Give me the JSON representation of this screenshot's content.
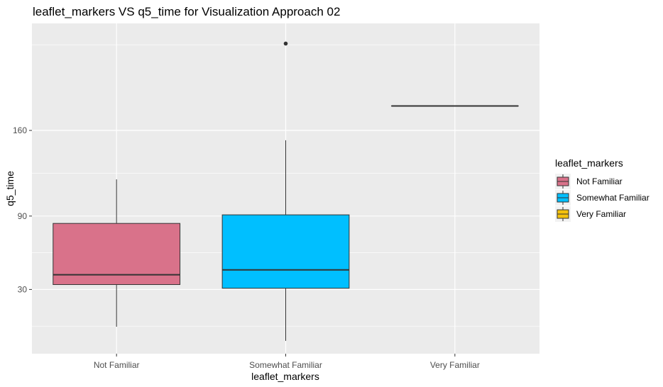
{
  "chart_data": {
    "type": "box",
    "title": "leaflet_markers VS q5_time for Visualization Approach 02",
    "xlabel": "leaflet_markers",
    "ylabel": "q5_time",
    "categories": [
      "Not Familiar",
      "Somewhat Familiar",
      "Very Familiar"
    ],
    "ylim": [
      -22.5,
      247.5
    ],
    "yticks": [
      30,
      90,
      160
    ],
    "ytick_labels": [
      "30",
      "90",
      "160"
    ],
    "boxes": [
      {
        "category": "Not Familiar",
        "min": -0.5,
        "q1": 34,
        "median": 42,
        "q3": 84,
        "max": 120,
        "outliers": [],
        "fill": "#d9728a"
      },
      {
        "category": "Somewhat Familiar",
        "min": -12,
        "q1": 31,
        "median": 46,
        "q3": 91,
        "max": 152,
        "outliers": [
          231
        ],
        "fill": "#00bfff"
      },
      {
        "category": "Very Familiar",
        "min": 180,
        "q1": 180,
        "median": 180,
        "q3": 180,
        "max": 180,
        "outliers": [],
        "fill": "#f4c20d"
      }
    ],
    "legend": {
      "title": "leaflet_markers",
      "entries": [
        {
          "label": "Not Familiar",
          "color": "#d9728a"
        },
        {
          "label": "Somewhat Familiar",
          "color": "#00bfff"
        },
        {
          "label": "Very Familiar",
          "color": "#f4c20d"
        }
      ],
      "position": "right"
    },
    "grid": true,
    "panel_background": "#ebebeb",
    "grid_color": "#ffffff"
  }
}
